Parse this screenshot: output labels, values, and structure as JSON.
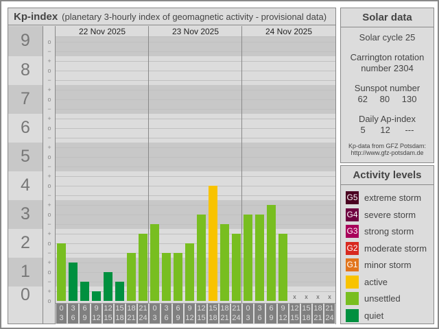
{
  "title": {
    "main": "Kp-index",
    "sub": "(planetary 3-hourly index of geomagnetic activity - provisional data)"
  },
  "kp_levels": [
    "0",
    "1",
    "2",
    "3",
    "4",
    "5",
    "6",
    "7",
    "8",
    "9"
  ],
  "ticks": {
    "minus": "−",
    "o": "o",
    "plus": "+"
  },
  "days": [
    "22 Nov 2025",
    "23 Nov 2025",
    "24 Nov 2025"
  ],
  "time_slots": [
    [
      "0",
      "3"
    ],
    [
      "3",
      "6"
    ],
    [
      "6",
      "9"
    ],
    [
      "9",
      "12"
    ],
    [
      "12",
      "15"
    ],
    [
      "15",
      "18"
    ],
    [
      "18",
      "21"
    ],
    [
      "21",
      "24"
    ]
  ],
  "kp_values_thirds": [
    [
      6,
      4,
      2,
      1,
      3,
      2,
      5,
      7
    ],
    [
      8,
      5,
      5,
      6,
      9,
      12,
      8,
      7
    ],
    [
      9,
      9,
      10,
      7,
      null,
      null,
      null,
      null
    ]
  ],
  "missing_mark": "x",
  "colors": {
    "quiet": "#00903f",
    "unsettled": "#78be20",
    "active": "#f8c300",
    "g1": "#e2751c",
    "g2": "#d8291f",
    "g3": "#a8005a",
    "g4": "#6e0040",
    "g5": "#4a0020"
  },
  "solar": {
    "heading": "Solar data",
    "cycle": "Solar cycle 25",
    "carrington_1": "Carrington rotation",
    "carrington_2": "number 2304",
    "sunspot_label": "Sunspot number",
    "sunspots": [
      "62",
      "80",
      "130"
    ],
    "ap_label": "Daily Ap-index",
    "ap": [
      "5",
      "12",
      "---"
    ],
    "source_1": "Kp-data from GFZ Potsdam:",
    "source_2": "http://www.gfz-potsdam.de"
  },
  "legend": {
    "heading": "Activity levels",
    "items": [
      {
        "code": "G5",
        "label": "extreme storm",
        "color": "#4a0020"
      },
      {
        "code": "G4",
        "label": "severe storm",
        "color": "#6e0040"
      },
      {
        "code": "G3",
        "label": "strong storm",
        "color": "#a8005a"
      },
      {
        "code": "G2",
        "label": "moderate storm",
        "color": "#d8291f"
      },
      {
        "code": "G1",
        "label": "minor storm",
        "color": "#e2751c"
      },
      {
        "code": "",
        "label": "active",
        "color": "#f8c300"
      },
      {
        "code": "",
        "label": "unsettled",
        "color": "#78be20"
      },
      {
        "code": "",
        "label": "quiet",
        "color": "#00903f"
      }
    ]
  }
}
